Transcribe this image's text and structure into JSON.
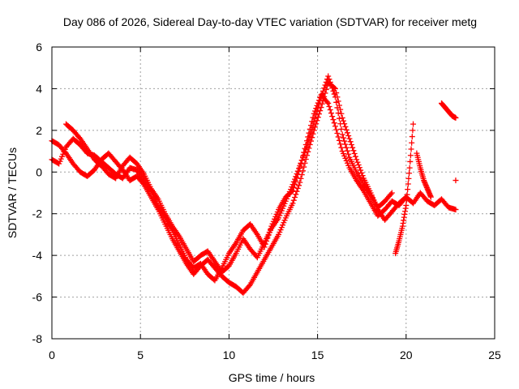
{
  "chart_data": {
    "type": "scatter",
    "title": "Day 086 of 2026, Sidereal Day-to-day VTEC variation (SDTVAR) for receiver metg",
    "xlabel": "GPS time / hours",
    "ylabel": "SDTVAR / TECUs",
    "xlim": [
      0,
      25
    ],
    "ylim": [
      -8,
      6
    ],
    "xticks": [
      0,
      5,
      10,
      15,
      20,
      25
    ],
    "yticks": [
      -8,
      -6,
      -4,
      -2,
      0,
      2,
      4,
      6
    ],
    "xtick_labels": [
      "0",
      "5",
      "10",
      "15",
      "20",
      "25"
    ],
    "ytick_labels": [
      "-8",
      "-6",
      "-4",
      "-2",
      "0",
      "2",
      "4",
      "6"
    ],
    "grid": true,
    "marker": "+",
    "color": "#ff0000",
    "series": [
      {
        "name": "track-1",
        "x": [
          0.0,
          0.4,
          0.8,
          1.2,
          1.6,
          2.0,
          2.4,
          2.8,
          3.2,
          3.6,
          4.0,
          4.4,
          4.8,
          5.2,
          5.6,
          6.0,
          6.4,
          6.8,
          7.2,
          7.6,
          8.0,
          8.4,
          8.8,
          9.2,
          9.6,
          10.0,
          10.4,
          10.8,
          11.2,
          11.6,
          12.0,
          12.4,
          12.8,
          13.2,
          13.6,
          14.0,
          14.4,
          14.8,
          15.2,
          15.6,
          16.0,
          16.4,
          16.8,
          17.2,
          17.6,
          18.0,
          18.4,
          18.8,
          19.2,
          19.6,
          20.0,
          20.4,
          20.8,
          21.2,
          21.6,
          22.0,
          22.4,
          22.8
        ],
        "y": [
          0.6,
          0.4,
          1.2,
          1.6,
          1.3,
          0.9,
          0.8,
          0.5,
          0.2,
          -0.1,
          -0.3,
          0.2,
          0.1,
          -0.4,
          -0.9,
          -1.6,
          -2.2,
          -2.8,
          -3.5,
          -4.2,
          -4.6,
          -4.4,
          -4.9,
          -5.2,
          -4.6,
          -3.9,
          -3.4,
          -2.8,
          -2.5,
          -3.0,
          -3.6,
          -2.6,
          -1.8,
          -1.2,
          -0.9,
          0.2,
          1.5,
          2.8,
          3.7,
          3.3,
          2.2,
          1.0,
          0.2,
          -0.4,
          -0.9,
          -1.5,
          -2.1,
          -1.8,
          -1.4,
          -1.6,
          -1.2,
          -1.5,
          -1.0,
          -1.4,
          -1.6,
          -1.3,
          -1.7,
          -1.8
        ]
      },
      {
        "name": "track-2",
        "x": [
          0.0,
          0.4,
          0.8,
          1.2,
          1.6,
          2.0,
          2.4,
          2.8,
          3.2,
          3.6,
          4.0,
          4.4,
          4.8,
          5.2,
          5.6,
          6.0,
          6.4,
          6.8,
          7.2,
          7.6,
          8.0,
          8.4,
          8.8,
          9.2,
          9.6,
          10.0,
          10.4,
          10.8,
          11.2,
          11.6,
          12.0,
          12.4,
          12.8,
          13.2,
          13.6,
          14.0,
          14.4,
          14.8,
          15.2,
          15.6,
          16.0,
          16.4,
          16.8,
          17.2,
          17.6,
          18.0,
          18.4,
          18.8,
          19.2,
          19.6,
          20.0
        ],
        "y": [
          1.5,
          1.3,
          0.9,
          0.4,
          0.0,
          -0.2,
          0.1,
          0.6,
          0.9,
          0.5,
          0.1,
          -0.4,
          -0.2,
          -0.6,
          -1.2,
          -1.8,
          -2.5,
          -3.2,
          -3.8,
          -4.4,
          -4.9,
          -4.5,
          -4.2,
          -4.6,
          -5.0,
          -5.3,
          -5.5,
          -5.8,
          -5.4,
          -4.8,
          -4.2,
          -3.6,
          -3.0,
          -2.2,
          -1.5,
          -0.5,
          0.8,
          2.0,
          3.1,
          4.3,
          4.0,
          2.6,
          1.6,
          0.6,
          -0.3,
          -1.0,
          -1.8,
          -2.3,
          -1.9,
          -1.5,
          -1.2
        ]
      },
      {
        "name": "track-3",
        "x": [
          0.8,
          1.2,
          1.6,
          2.0,
          2.4,
          2.8,
          3.2,
          3.6,
          4.0,
          4.4,
          4.8,
          5.2,
          5.6,
          6.0,
          6.4,
          6.8,
          7.2,
          7.6,
          8.0,
          8.4,
          8.8,
          9.2,
          9.6,
          10.0,
          10.4,
          10.8,
          11.2,
          11.6,
          12.0,
          12.4,
          12.8,
          13.2,
          13.6,
          14.0,
          14.4,
          14.8,
          15.2,
          15.6,
          16.0,
          16.4,
          16.8,
          17.2,
          17.6,
          18.0,
          18.4,
          18.8,
          19.2
        ],
        "y": [
          2.3,
          2.0,
          1.6,
          1.1,
          0.6,
          0.3,
          -0.1,
          -0.3,
          0.3,
          0.7,
          0.4,
          -0.1,
          -0.8,
          -1.3,
          -2.0,
          -2.6,
          -3.1,
          -3.7,
          -4.3,
          -4.0,
          -3.8,
          -4.3,
          -4.8,
          -4.5,
          -3.9,
          -3.2,
          -3.7,
          -4.1,
          -3.4,
          -2.7,
          -2.2,
          -1.4,
          -0.6,
          0.3,
          1.2,
          2.4,
          3.6,
          4.6,
          3.6,
          1.8,
          0.7,
          0.0,
          -0.6,
          -1.1,
          -1.7,
          -1.4,
          -1.0
        ]
      },
      {
        "name": "track-4",
        "x": [
          19.4,
          19.6,
          19.8,
          20.0,
          20.2,
          20.4
        ],
        "y": [
          -3.9,
          -3.3,
          -2.6,
          -1.6,
          0.2,
          2.3
        ]
      },
      {
        "name": "track-5",
        "x": [
          20.6,
          20.8,
          21.0,
          21.2,
          21.4
        ],
        "y": [
          0.9,
          0.2,
          -0.4,
          -0.8,
          -1.2
        ]
      },
      {
        "name": "track-6",
        "x": [
          22.0,
          22.2,
          22.4,
          22.6,
          22.8
        ],
        "y": [
          3.3,
          3.1,
          2.9,
          2.7,
          2.6
        ]
      },
      {
        "name": "track-7",
        "x": [
          22.8
        ],
        "y": [
          -0.4
        ]
      }
    ]
  }
}
